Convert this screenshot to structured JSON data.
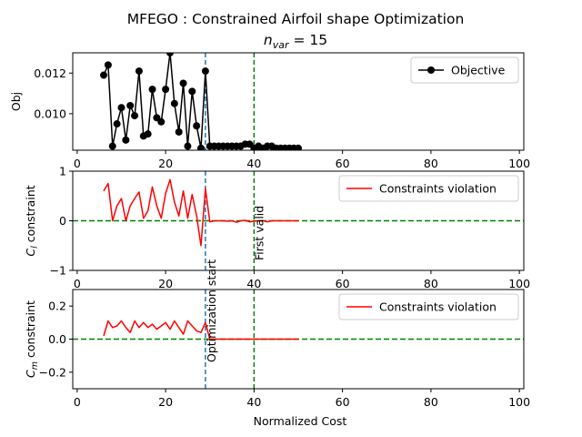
{
  "figure": {
    "title": "MFEGO : Constrained Airfoil shape Optimization",
    "subtitle": "n",
    "subtitle_sub": "var",
    "subtitle_tail": " = 15",
    "xlabel": "Normalized Cost"
  },
  "annotations": {
    "optimization_start_label": "Optimization start",
    "optimization_start_x": 29,
    "first_valid_label": "First valid",
    "first_valid_x": 40
  },
  "colors": {
    "objective": "#000000",
    "violation": "#ff0000",
    "zero_line": "#008000",
    "opt_start_line": "#1f77b4",
    "first_valid_line": "#008000"
  },
  "chart_data": [
    {
      "type": "line",
      "ylabel": "Obj",
      "xlim": [
        -1,
        101
      ],
      "ylim": [
        0.0082,
        0.013
      ],
      "xticks": [
        0,
        20,
        40,
        60,
        80,
        100
      ],
      "yticks": [
        0.01,
        0.012
      ],
      "ytick_labels": [
        "0.010",
        "0.012"
      ],
      "legend": "top-right",
      "series": [
        {
          "name": "Objective",
          "marker": "circle",
          "x": [
            6,
            7,
            8,
            9,
            10,
            11,
            12,
            13,
            14,
            15,
            16,
            17,
            18,
            19,
            20,
            21,
            22,
            23,
            24,
            25,
            26,
            27,
            28,
            29,
            30,
            31,
            32,
            33,
            34,
            35,
            36,
            37,
            38,
            39,
            40,
            41,
            42,
            43,
            44,
            45,
            46,
            47,
            48,
            49,
            50
          ],
          "y": [
            0.0119,
            0.0124,
            0.0084,
            0.0095,
            0.0103,
            0.0087,
            0.0104,
            0.0099,
            0.0121,
            0.0089,
            0.009,
            0.0112,
            0.0098,
            0.0096,
            0.0112,
            0.013,
            0.0105,
            0.0091,
            0.0115,
            0.0084,
            0.0111,
            0.0094,
            0.0083,
            0.0121,
            0.0084,
            0.0084,
            0.0084,
            0.0084,
            0.0084,
            0.0084,
            0.0084,
            0.0084,
            0.0085,
            0.0085,
            0.0083,
            0.0084,
            0.0083,
            0.0084,
            0.0084,
            0.0083,
            0.0083,
            0.0083,
            0.0083,
            0.0083,
            0.0083
          ]
        }
      ]
    },
    {
      "type": "line",
      "ylabel": "C_l constraint",
      "ylabel_base": "C",
      "ylabel_sub": "l",
      "ylabel_tail": " constraint",
      "xlim": [
        -1,
        101
      ],
      "ylim": [
        -1,
        1
      ],
      "xticks": [
        0,
        20,
        40,
        60,
        80,
        100
      ],
      "yticks": [
        -1,
        0,
        1
      ],
      "ytick_labels": [
        "−1",
        "0",
        "1"
      ],
      "legend": "top-right",
      "series": [
        {
          "name": "Constraints violation",
          "x": [
            6,
            7,
            8,
            9,
            10,
            11,
            12,
            13,
            14,
            15,
            16,
            17,
            18,
            19,
            20,
            21,
            22,
            23,
            24,
            25,
            26,
            27,
            28,
            29,
            30,
            31,
            32,
            33,
            34,
            35,
            36,
            37,
            38,
            39,
            40,
            41,
            42,
            43,
            44,
            45,
            46,
            47,
            48,
            49,
            50
          ],
          "y": [
            0.6,
            0.75,
            0.0,
            0.3,
            0.45,
            0.0,
            0.3,
            0.45,
            0.58,
            0.05,
            0.2,
            0.68,
            0.3,
            0.05,
            0.55,
            0.83,
            0.38,
            0.1,
            0.6,
            0.05,
            0.53,
            0.1,
            -0.5,
            0.65,
            -0.02,
            0.0,
            0.0,
            0.0,
            -0.01,
            0.0,
            -0.03,
            0.0,
            0.01,
            -0.02,
            -0.01,
            0.0,
            0.0,
            -0.02,
            0.0,
            0.0,
            0.0,
            0.0,
            0.0,
            0.0,
            0.0
          ]
        }
      ]
    },
    {
      "type": "line",
      "ylabel": "C_m constraint",
      "ylabel_base": "C",
      "ylabel_sub": "m",
      "ylabel_tail": " constraint",
      "xlim": [
        -1,
        101
      ],
      "ylim": [
        -0.3,
        0.3
      ],
      "xticks": [
        0,
        20,
        40,
        60,
        80,
        100
      ],
      "yticks": [
        -0.2,
        0.0,
        0.2
      ],
      "ytick_labels": [
        "−0.2",
        "0.0",
        "0.2"
      ],
      "legend": "top-right",
      "series": [
        {
          "name": "Constraints violation",
          "x": [
            6,
            7,
            8,
            9,
            10,
            11,
            12,
            13,
            14,
            15,
            16,
            17,
            18,
            19,
            20,
            21,
            22,
            23,
            24,
            25,
            26,
            27,
            28,
            29,
            30,
            31,
            32,
            33,
            34,
            35,
            36,
            37,
            38,
            39,
            40,
            41,
            42,
            43,
            44,
            45,
            46,
            47,
            48,
            49,
            50
          ],
          "y": [
            0.02,
            0.11,
            0.07,
            0.08,
            0.11,
            0.07,
            0.04,
            0.11,
            0.07,
            0.1,
            0.07,
            0.09,
            0.06,
            0.08,
            0.1,
            0.06,
            0.11,
            0.07,
            0.03,
            0.11,
            0.08,
            0.05,
            0.04,
            0.1,
            0.0,
            0.0,
            0.0,
            0.0,
            0.0,
            0.0,
            0.0,
            0.0,
            0.0,
            0.0,
            0.0,
            0.0,
            0.0,
            0.0,
            0.0,
            0.0,
            0.0,
            0.0,
            0.0,
            0.0,
            0.0
          ]
        }
      ]
    }
  ]
}
